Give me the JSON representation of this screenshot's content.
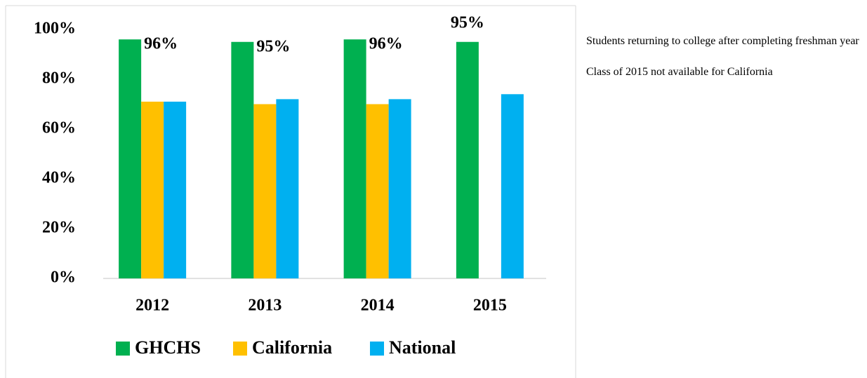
{
  "chart_data": {
    "type": "bar",
    "categories": [
      "2012",
      "2013",
      "2014",
      "2015"
    ],
    "series": [
      {
        "name": "GHCHS",
        "color": "#00b050",
        "values": [
          96,
          95,
          96,
          95
        ],
        "value_labels": [
          "96%",
          "95%",
          "96%",
          "95%"
        ]
      },
      {
        "name": "California",
        "color": "#ffc000",
        "values": [
          71,
          70,
          70,
          null
        ]
      },
      {
        "name": "National",
        "color": "#00b0f0",
        "values": [
          71,
          72,
          72,
          74
        ]
      }
    ],
    "ylim": [
      0,
      100
    ],
    "yticks": [
      {
        "value": 0,
        "label": "0%"
      },
      {
        "value": 20,
        "label": "20%"
      },
      {
        "value": 40,
        "label": "40%"
      },
      {
        "value": 60,
        "label": "60%"
      },
      {
        "value": 80,
        "label": "80%"
      },
      {
        "value": 100,
        "label": "100%"
      }
    ],
    "grid": false,
    "legend": "bottom"
  },
  "notes": [
    "Students returning to college after completing freshman year",
    "Class of 2015 not available for California"
  ]
}
